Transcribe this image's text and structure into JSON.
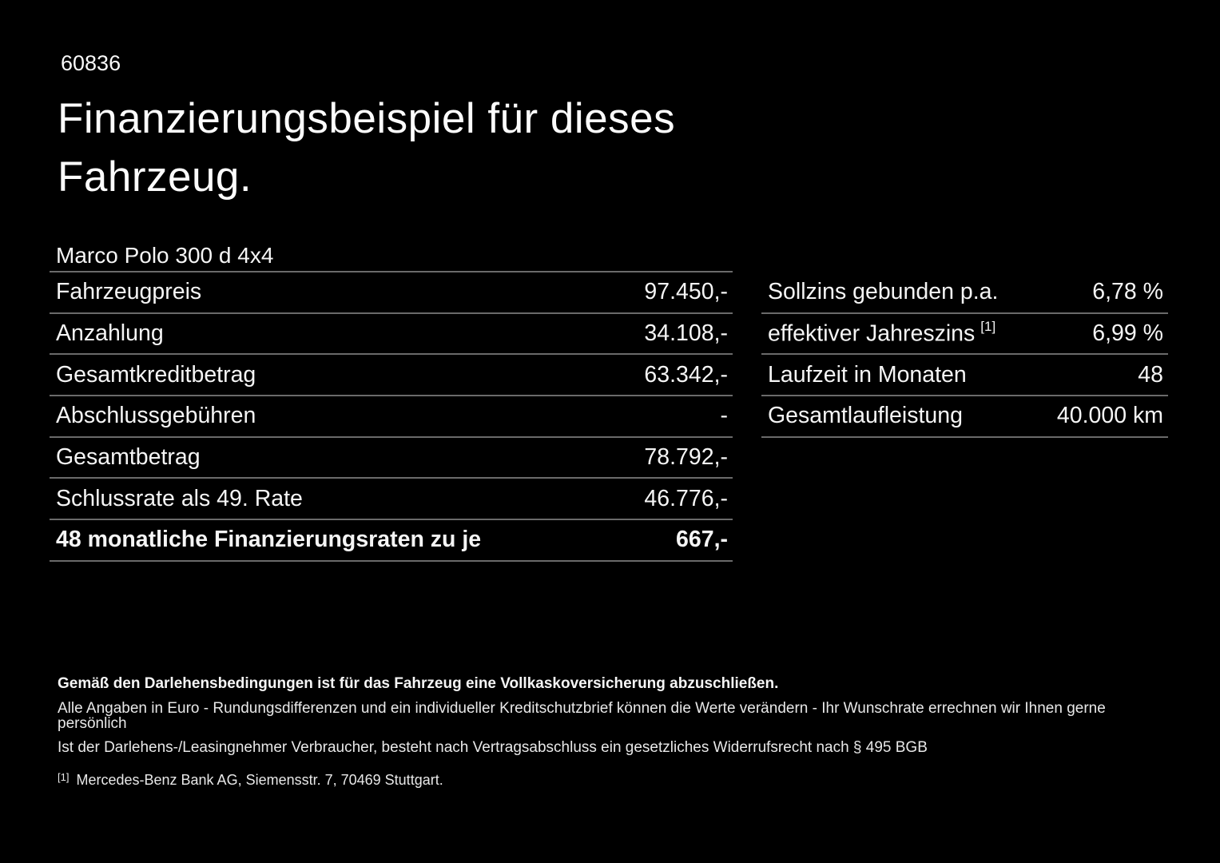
{
  "page": {
    "ref_number": "60836",
    "title_line1": "Finanzierungsbeispiel für dieses",
    "title_line2": "Fahrzeug.",
    "vehicle_name": "Marco Polo 300 d 4x4"
  },
  "finance_table": {
    "rows": [
      {
        "label": "Fahrzeugpreis",
        "value": "97.450,-"
      },
      {
        "label": "Anzahlung",
        "value": "34.108,-"
      },
      {
        "label": "Gesamtkreditbetrag",
        "value": "63.342,-"
      },
      {
        "label": "Abschlussgebühren",
        "value": "-"
      },
      {
        "label": "Gesamtbetrag",
        "value": "78.792,-"
      },
      {
        "label": "Schlussrate als 49. Rate",
        "value": "46.776,-"
      },
      {
        "label": "48 monatliche Finanzierungsraten zu je",
        "value": "667,-"
      }
    ]
  },
  "conditions_table": {
    "rows": [
      {
        "label": "Sollzins gebunden p.a.",
        "value": "6,78 %"
      },
      {
        "label": "effektiver Jahreszins",
        "footnote_marker": "[1]",
        "value": "6,99 %"
      },
      {
        "label": "Laufzeit in Monaten",
        "value": "48"
      },
      {
        "label": "Gesamtlaufleistung",
        "value": "40.000 km"
      }
    ]
  },
  "footer": {
    "line1": "Gemäß den Darlehensbedingungen ist für das Fahrzeug eine Vollkaskoversicherung abzuschließen.",
    "line2": "Alle Angaben in Euro - Rundungsdifferenzen und ein individueller Kreditschutzbrief können die Werte verändern - Ihr Wunschrate errechnen wir Ihnen gerne persönlich",
    "line3": "Ist der Darlehens-/Leasingnehmer Verbraucher, besteht nach Vertragsabschluss ein gesetzliches Widerrufsrecht nach § 495 BGB",
    "footnote_marker": "[1]",
    "footnote_text": "Mercedes-Benz Bank AG, Siemensstr. 7, 70469 Stuttgart."
  },
  "colors": {
    "background": "#000000",
    "text": "#f5f5f5",
    "divider": "#6a6a6a"
  }
}
